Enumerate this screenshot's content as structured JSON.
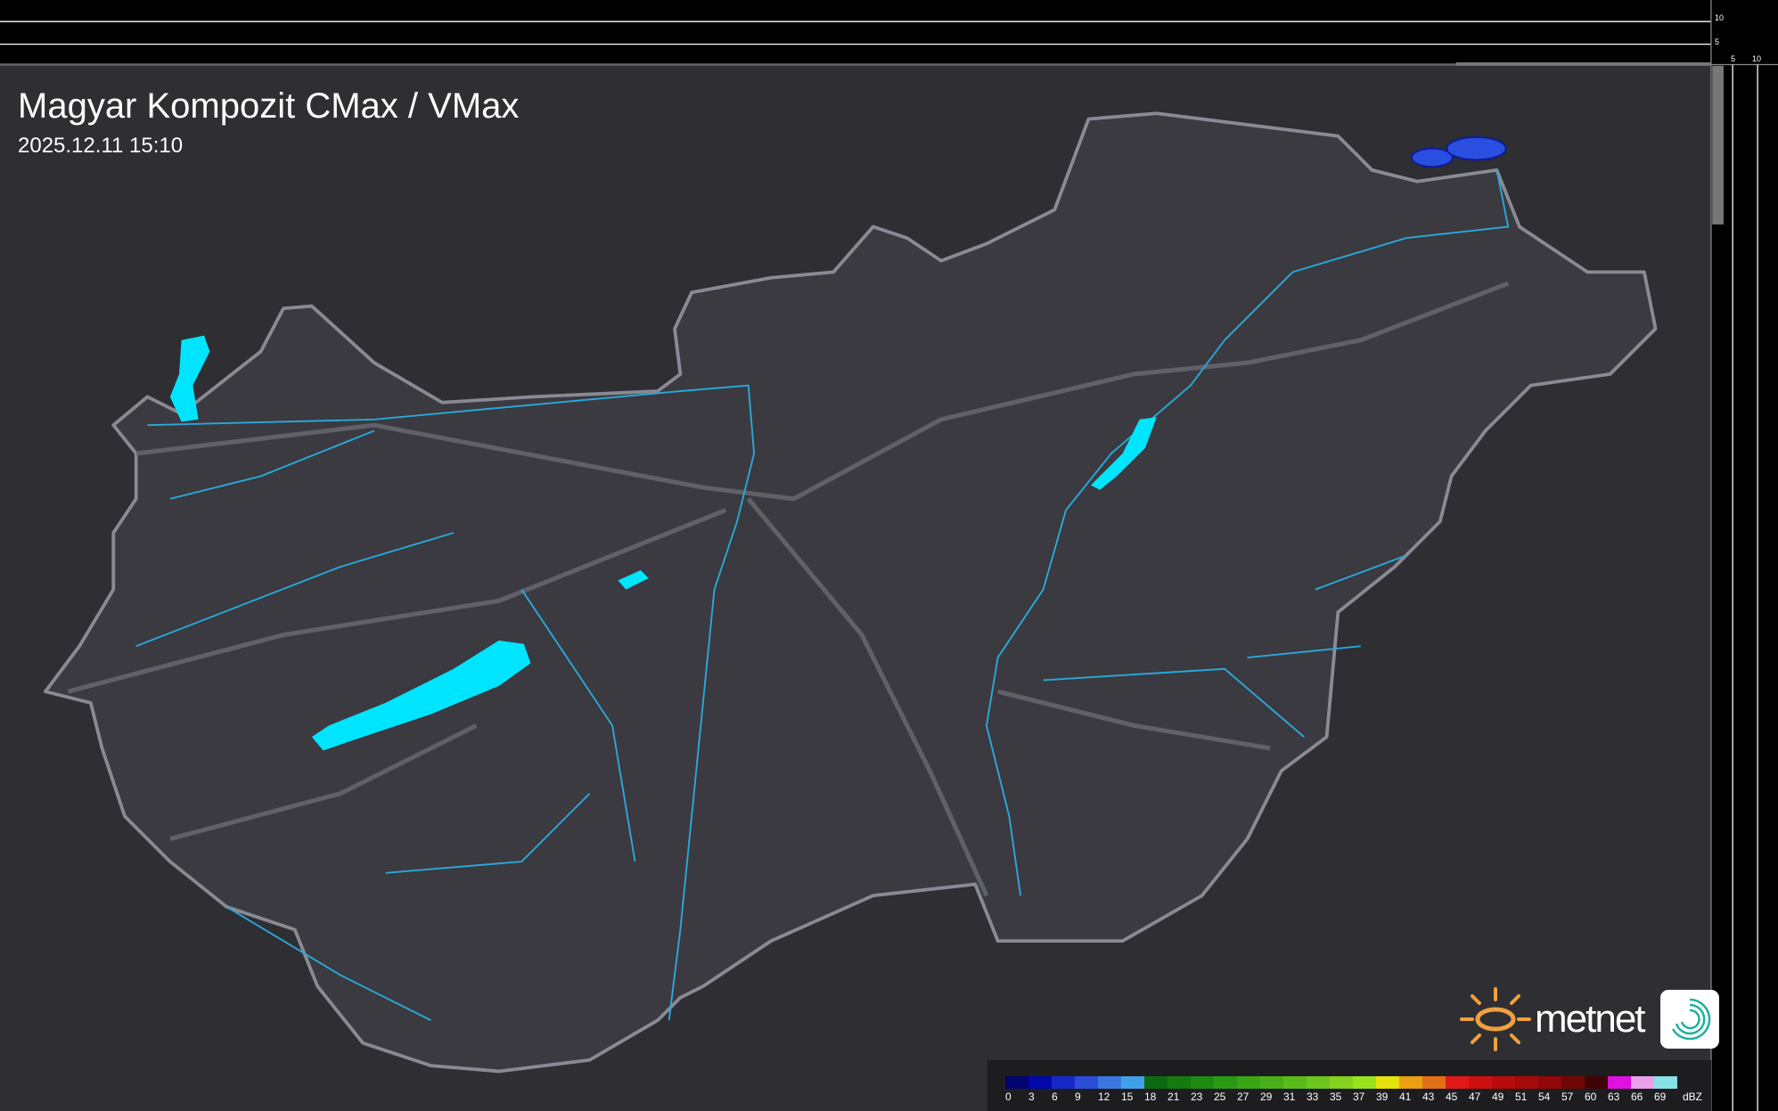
{
  "header": {
    "title": "Magyar Kompozit CMax / VMax",
    "timestamp": "2025.12.11 15:10"
  },
  "scale": {
    "v_labels": [
      "10",
      "5"
    ],
    "h_labels": [
      "5",
      "10"
    ]
  },
  "legend": {
    "unit": "dBZ",
    "labels": [
      "0",
      "3",
      "6",
      "9",
      "12",
      "15",
      "18",
      "21",
      "23",
      "25",
      "27",
      "29",
      "31",
      "33",
      "35",
      "37",
      "39",
      "41",
      "43",
      "45",
      "47",
      "49",
      "51",
      "54",
      "57",
      "60",
      "63",
      "66",
      "69"
    ],
    "colors": [
      "#02046e",
      "#0208a8",
      "#1628c8",
      "#2a4ed8",
      "#3a78e0",
      "#40a0e8",
      "#0c6a10",
      "#167a10",
      "#1e8a12",
      "#2a9a14",
      "#3aa616",
      "#4aae18",
      "#5abb1a",
      "#6cc61c",
      "#84d21e",
      "#9ae21e",
      "#e6e00c",
      "#eaa010",
      "#e07018",
      "#e01818",
      "#cc1010",
      "#b80c0c",
      "#a40a0a",
      "#900808",
      "#700606",
      "#400404",
      "#e010e0",
      "#e8a0e8",
      "#88e0e8"
    ]
  },
  "logo": {
    "text": "metnet",
    "sun_color": "#f0a040",
    "swirl_color": "#20b0a0"
  },
  "map_colors": {
    "background": "#2e2e33",
    "country": "#3a3a40",
    "border": "#8a8a95",
    "river": "#2aa8d8",
    "lake": "#00e5ff",
    "radar": "#2a4ee0"
  }
}
